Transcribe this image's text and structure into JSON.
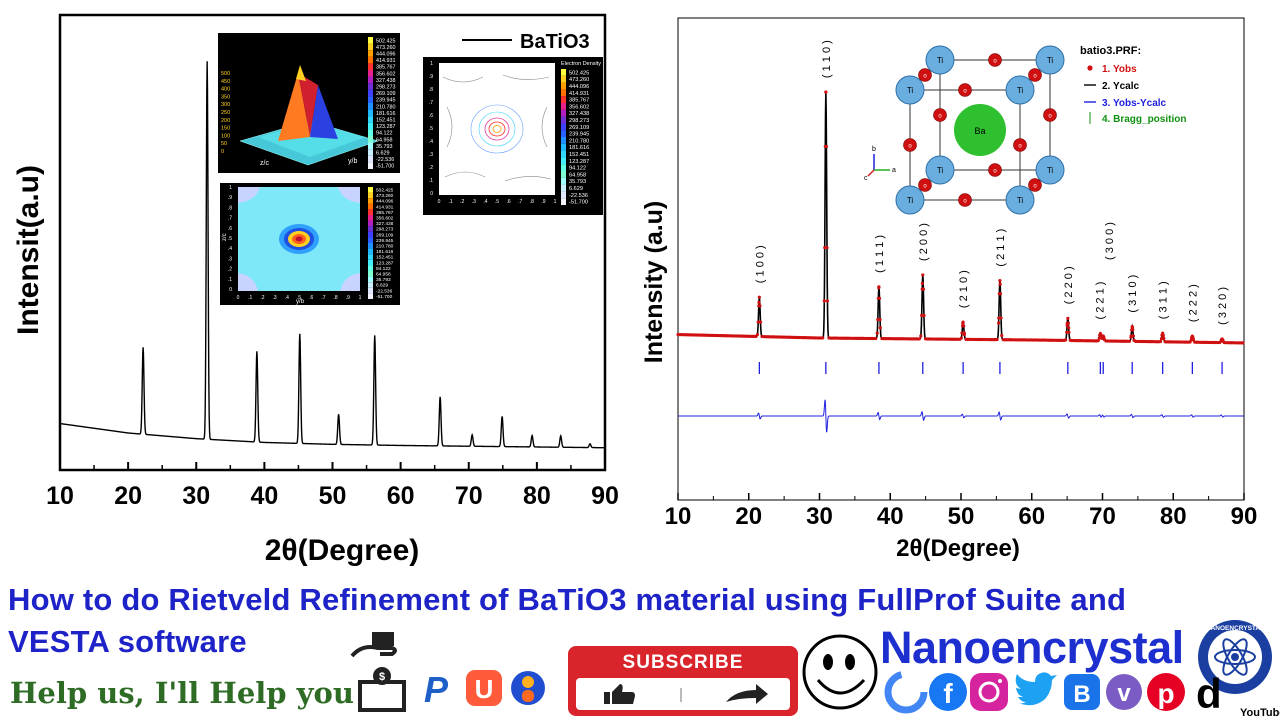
{
  "chart_data": [
    {
      "type": "line",
      "title": "",
      "xlabel": "2θ(Degree)",
      "ylabel": "Intensit(a.u)",
      "xlim": [
        10,
        90
      ],
      "xticks": [
        "10",
        "20",
        "30",
        "40",
        "50",
        "60",
        "70",
        "80",
        "90"
      ],
      "legend": {
        "entries": [
          "BaTiO3"
        ],
        "position": "top-right"
      },
      "baseline": [
        [
          10,
          0.07
        ],
        [
          20,
          0.045
        ],
        [
          30,
          0.03
        ],
        [
          40,
          0.02
        ],
        [
          50,
          0.015
        ],
        [
          60,
          0.012
        ],
        [
          70,
          0.01
        ],
        [
          80,
          0.008
        ],
        [
          90,
          0.006
        ]
      ],
      "peaks": [
        {
          "x": 22.2,
          "y": 0.23
        },
        {
          "x": 31.6,
          "y": 1.0
        },
        {
          "x": 38.9,
          "y": 0.24
        },
        {
          "x": 45.2,
          "y": 0.29
        },
        {
          "x": 50.9,
          "y": 0.08
        },
        {
          "x": 56.2,
          "y": 0.29
        },
        {
          "x": 65.8,
          "y": 0.13
        },
        {
          "x": 70.5,
          "y": 0.03
        },
        {
          "x": 74.9,
          "y": 0.08
        },
        {
          "x": 79.3,
          "y": 0.03
        },
        {
          "x": 83.5,
          "y": 0.03
        },
        {
          "x": 87.8,
          "y": 0.01
        }
      ],
      "insets": {
        "colorbar_values": [
          "502.425",
          "473.260",
          "444.096",
          "414.931",
          "385.767",
          "356.602",
          "327.438",
          "298.273",
          "269.109",
          "239.945",
          "210.780",
          "181.616",
          "152.451",
          "123.287",
          "94.122",
          "64.958",
          "35.793",
          "6.629",
          "-22.536",
          "-51.700"
        ],
        "colorbar_colors": [
          "#ffff40",
          "#ffd020",
          "#ffa000",
          "#ff7000",
          "#ff3030",
          "#e8208a",
          "#b020c0",
          "#7030d8",
          "#4040ff",
          "#2a60ff",
          "#2090ff",
          "#20b8ff",
          "#30d8ff",
          "#40f0ff",
          "#60ffe8",
          "#80ffd0",
          "#a0ffff",
          "#c8f0ff",
          "#e0e8ff",
          "#f4f4ff"
        ],
        "contour_title": "Electron Density",
        "surface_zticks": [
          "500",
          "450",
          "400",
          "350",
          "300",
          "250",
          "200",
          "150",
          "100",
          "50",
          "0"
        ],
        "surface_xlabel": "z/c",
        "surface_ylabel": "y/b",
        "map_ylabel": "z/c",
        "map_xlabel": "y/b",
        "map_ticks": [
          "0",
          ".1",
          ".2",
          ".3",
          ".4",
          ".5",
          ".6",
          ".7",
          ".8",
          ".9",
          "1"
        ]
      }
    },
    {
      "type": "line",
      "title": "",
      "xlabel": "2θ(Degree)",
      "ylabel": "Intensity (a.u)",
      "xlim": [
        10,
        90
      ],
      "xticks": [
        "10",
        "20",
        "30",
        "40",
        "50",
        "60",
        "70",
        "80",
        "90"
      ],
      "legend": {
        "title": "batio3.PRF:",
        "position": "top-right",
        "entries": [
          {
            "name": "1. Yobs",
            "color": "#d01010",
            "style": "dot"
          },
          {
            "name": "2. Ycalc",
            "color": "#000000",
            "style": "line"
          },
          {
            "name": "3. Yobs-Ycalc",
            "color": "#2020e0",
            "style": "line"
          },
          {
            "name": "4. Bragg_position",
            "color": "#109010",
            "style": "tick"
          }
        ]
      },
      "peaks": [
        {
          "x": 21.5,
          "y": 0.16,
          "hkl": "( 1 0 0 )"
        },
        {
          "x": 30.9,
          "y": 1.0,
          "hkl": "( 1 1 0 )"
        },
        {
          "x": 38.4,
          "y": 0.21,
          "hkl": "( 1 1 1 )"
        },
        {
          "x": 44.6,
          "y": 0.26,
          "hkl": "( 2 0 0 )"
        },
        {
          "x": 50.3,
          "y": 0.07,
          "hkl": "( 2 1 0 )"
        },
        {
          "x": 55.5,
          "y": 0.24,
          "hkl": "( 2 1 1 )"
        },
        {
          "x": 65.1,
          "y": 0.09,
          "hkl": "( 2 2 0 )"
        },
        {
          "x": 69.7,
          "y": 0.03,
          "hkl": "( 2 2 1 )"
        },
        {
          "x": 70.1,
          "y": 0.02,
          "hkl": "( 3 0 0 )"
        },
        {
          "x": 74.2,
          "y": 0.06,
          "hkl": "( 3 1 0 )"
        },
        {
          "x": 78.5,
          "y": 0.035,
          "hkl": "( 3 1 1 )"
        },
        {
          "x": 82.7,
          "y": 0.025,
          "hkl": "( 2 2 2 )"
        },
        {
          "x": 86.9,
          "y": 0.015,
          "hkl": "( 3 2 0 )"
        }
      ],
      "bragg_positions": [
        21.5,
        30.9,
        38.4,
        44.6,
        50.3,
        55.5,
        65.1,
        69.7,
        70.1,
        74.2,
        78.5,
        82.7,
        86.9
      ],
      "crystal_labels": {
        "corner": "Ti",
        "center": "Ba",
        "oxygen": "o",
        "axes": [
          "b",
          "a",
          "c"
        ]
      }
    }
  ],
  "footer": {
    "title_line1": "How to do Rietveld Refinement of BaTiO3 material using FullProf Suite and",
    "title_line2": "VESTA software",
    "tagline": "Help us, I'll Help you",
    "brand": "Nanoencrystal",
    "subscribe": "SUBSCRIBE",
    "seal_text": "NANOENCRYSTAL",
    "youtube": "YouTube",
    "social_colors": [
      "#4285f4",
      "#1877f2",
      "#d6249f",
      "#1da1f2",
      "#1a73e8",
      "#7b5cc4",
      "#e60023",
      "#000000"
    ]
  }
}
